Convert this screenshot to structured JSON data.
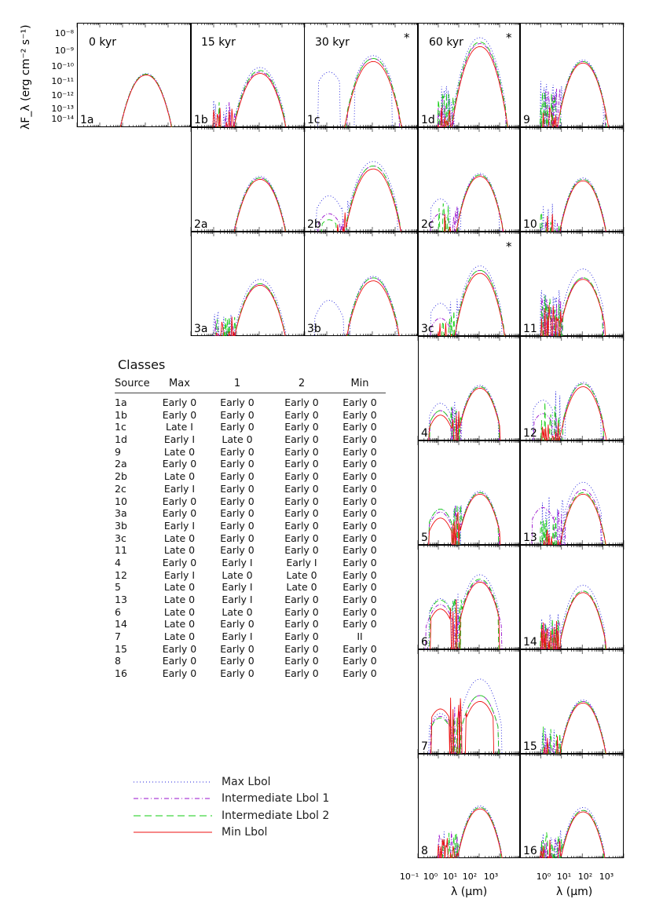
{
  "figure": {
    "y_axis_label": "λF_λ (erg cm⁻² s⁻¹)",
    "x_axis_label": "λ (μm)",
    "col_titles": [
      {
        "label": "0 kyr"
      },
      {
        "label": "15 kyr"
      },
      {
        "label": "30 kyr"
      },
      {
        "label": "60 kyr"
      }
    ],
    "y_ticks": [
      "10⁻⁸",
      "10⁻⁹",
      "10⁻¹⁰",
      "10⁻¹¹",
      "10⁻¹²",
      "10⁻¹³",
      "10⁻¹⁴"
    ],
    "x_ticks": [
      "10⁻¹",
      "10⁰",
      "10¹",
      "10²",
      "10³"
    ],
    "x_ticks_right": [
      "10⁰",
      "10¹",
      "10²",
      "10³"
    ]
  },
  "chart_data": {
    "type": "line",
    "xlabel": "λ (μm)",
    "ylabel": "λF_λ (erg cm⁻² s⁻¹)",
    "x_scale": "log",
    "y_scale": "log",
    "xlim": [
      0.1,
      10000
    ],
    "ylim": [
      1e-14,
      1e-07
    ],
    "series_styles": [
      {
        "name": "Max Lbol",
        "color": "#2222dd",
        "dash": "dotted"
      },
      {
        "name": "Intermediate Lbol 1",
        "color": "#9911cc",
        "dash": "dashdot"
      },
      {
        "name": "Intermediate Lbol 2",
        "color": "#11cc11",
        "dash": "dashed"
      },
      {
        "name": "Min Lbol",
        "color": "#ee1111",
        "dash": "solid"
      }
    ],
    "panels": [
      {
        "id": "1a",
        "star": false,
        "peak": [
          -10.4,
          -10.5,
          -10.45,
          -10.5
        ],
        "lo": [
          -14,
          -14,
          -14,
          -14
        ],
        "bump": [
          0,
          0,
          0,
          0
        ],
        "noise": 0,
        "src": "1a"
      },
      {
        "id": "1b",
        "star": false,
        "peak": [
          -10.0,
          -10.3,
          -10.2,
          -10.4
        ],
        "lo": [
          -13.5,
          -13.6,
          -13.6,
          -14
        ],
        "bump": [
          0,
          0,
          0,
          0
        ],
        "noise": 1
      },
      {
        "id": "2a",
        "star": false,
        "peak": [
          -10.3,
          -10.4,
          -10.4,
          -10.5
        ],
        "lo": [
          -14,
          -14,
          -14,
          -14
        ],
        "bump": [
          0,
          0,
          0,
          0
        ],
        "noise": 0
      },
      {
        "id": "3a",
        "star": false,
        "peak": [
          -10.2,
          -10.5,
          -10.5,
          -10.6
        ],
        "lo": [
          -13.8,
          -14,
          -13.8,
          -14
        ],
        "bump": [
          0,
          0,
          0,
          0
        ],
        "noise": 1
      },
      {
        "id": "1c",
        "star": true,
        "peak": [
          -9.2,
          -9.4,
          -9.4,
          -9.6
        ],
        "lo": [
          -11,
          -13,
          -13.2,
          -14
        ],
        "bump": [
          -10.3,
          0,
          0,
          0
        ],
        "noise": 0
      },
      {
        "id": "2b",
        "star": false,
        "peak": [
          -9.3,
          -9.6,
          -9.6,
          -9.8
        ],
        "lo": [
          -12.5,
          -13.5,
          -13.5,
          -14
        ],
        "bump": [
          -11.6,
          -12.8,
          -13.2,
          0
        ],
        "noise": 1
      },
      {
        "id": "3b",
        "star": false,
        "peak": [
          -10.0,
          -10.1,
          -10.1,
          -10.3
        ],
        "lo": [
          -12.8,
          -13.5,
          -13.5,
          -14
        ],
        "bump": [
          -11.6,
          -13.5,
          -13.5,
          0
        ],
        "noise": 0
      },
      {
        "id": "1d",
        "star": true,
        "peak": [
          -8.0,
          -8.4,
          -8.3,
          -8.6
        ],
        "lo": [
          -12.5,
          -13,
          -13,
          -14
        ],
        "bump": [
          0,
          0,
          0,
          0
        ],
        "noise": 2
      },
      {
        "id": "2c",
        "star": false,
        "peak": [
          -10.1,
          -10.2,
          -10.2,
          -10.3
        ],
        "lo": [
          -12.5,
          -13.5,
          -13.5,
          -14
        ],
        "bump": [
          -11.8,
          -12.8,
          0,
          0
        ],
        "noise": 1
      },
      {
        "id": "3c",
        "star": true,
        "peak": [
          -9.3,
          -9.6,
          -9.6,
          -9.8
        ],
        "lo": [
          -12.5,
          -13.5,
          -13.5,
          -14
        ],
        "bump": [
          -11.8,
          -12.8,
          0,
          0
        ],
        "noise": 1
      },
      {
        "id": "4",
        "star": false,
        "peak": [
          -10.3,
          -10.4,
          -10.4,
          -10.5
        ],
        "lo": [
          -12.5,
          -12.8,
          -12.8,
          -13.2
        ],
        "bump": [
          -11.5,
          -12.0,
          -12.0,
          -12.3
        ],
        "noise": 2
      },
      {
        "id": "5",
        "star": false,
        "peak": [
          -10.4,
          -10.5,
          -10.5,
          -10.6
        ],
        "lo": [
          -12.5,
          -12.8,
          -12.6,
          -13.2
        ],
        "bump": [
          -11.6,
          -11.8,
          -11.6,
          -12.2
        ],
        "noise": 2
      },
      {
        "id": "6",
        "star": false,
        "peak": [
          -9.0,
          -9.4,
          -9.3,
          -9.5
        ],
        "lo": [
          -11.5,
          -12.5,
          -11.5,
          -12.0
        ],
        "bump": [
          -10.6,
          -11.0,
          -10.7,
          -11.3
        ],
        "noise": 2
      },
      {
        "id": "7",
        "star": false,
        "peak": [
          -9.0,
          -10.1,
          -10.1,
          -10.5
        ],
        "lo": [
          -12.2,
          -12.2,
          -12.2,
          -11.6
        ],
        "bump": [
          -11.3,
          -11.5,
          -11.6,
          -11.0
        ],
        "noise": 1
      },
      {
        "id": "8",
        "star": false,
        "peak": [
          -10.5,
          -10.6,
          -10.6,
          -10.7
        ],
        "lo": [
          -13.5,
          -13.5,
          -13.5,
          -14
        ],
        "bump": [
          0,
          0,
          0,
          0
        ],
        "noise": 2
      },
      {
        "id": "9",
        "star": false,
        "peak": [
          -9.5,
          -9.6,
          -9.6,
          -9.7
        ],
        "lo": [
          -12.2,
          -12.8,
          -13.0,
          -14
        ],
        "bump": [
          0,
          0,
          0,
          0
        ],
        "noise": 2
      },
      {
        "id": "10",
        "star": false,
        "peak": [
          -10.4,
          -10.5,
          -10.5,
          -10.6
        ],
        "lo": [
          -13.5,
          -14,
          -14,
          -14
        ],
        "bump": [
          0,
          0,
          0,
          0
        ],
        "noise": 1
      },
      {
        "id": "11",
        "star": false,
        "peak": [
          -9.5,
          -10.1,
          -10.1,
          -10.2
        ],
        "lo": [
          -12.2,
          -12.8,
          -12.5,
          -13.2
        ],
        "bump": [
          0,
          0,
          0,
          0
        ],
        "noise": 2
      },
      {
        "id": "12",
        "star": false,
        "peak": [
          -10.1,
          -10.2,
          -10.2,
          -10.4
        ],
        "lo": [
          -12.0,
          -12.8,
          -12.8,
          -14
        ],
        "bump": [
          -11.3,
          -12.2,
          0,
          0
        ],
        "noise": 1
      },
      {
        "id": "13",
        "star": false,
        "peak": [
          -9.8,
          -10.3,
          -10.5,
          -10.6
        ],
        "lo": [
          -12.0,
          -12.3,
          -13.5,
          -14
        ],
        "bump": [
          0,
          -11.5,
          0,
          0
        ],
        "noise": 1
      },
      {
        "id": "14",
        "star": false,
        "peak": [
          -9.7,
          -10.1,
          -10.1,
          -10.2
        ],
        "lo": [
          -12.8,
          -13.3,
          -13.3,
          -13.5
        ],
        "bump": [
          0,
          0,
          0,
          0
        ],
        "noise": 2
      },
      {
        "id": "15",
        "star": false,
        "peak": [
          -10.4,
          -10.5,
          -10.5,
          -10.6
        ],
        "lo": [
          -13.5,
          -14,
          -13.5,
          -14
        ],
        "bump": [
          0,
          0,
          0,
          0
        ],
        "noise": 1
      },
      {
        "id": "16",
        "star": false,
        "peak": [
          -10.6,
          -10.8,
          -10.8,
          -10.9
        ],
        "lo": [
          -13.5,
          -14,
          -13.5,
          -14
        ],
        "bump": [
          0,
          0,
          0,
          0
        ],
        "noise": 2
      }
    ]
  },
  "classes": {
    "title": "Classes",
    "headers": [
      "Source",
      "Max",
      "1",
      "2",
      "Min"
    ],
    "rows": [
      [
        "1a",
        "Early 0",
        "Early 0",
        "Early 0",
        "Early 0"
      ],
      [
        "1b",
        "Early 0",
        "Early 0",
        "Early 0",
        "Early 0"
      ],
      [
        "1c",
        "Late I",
        "Early 0",
        "Early 0",
        "Early 0"
      ],
      [
        "1d",
        "Early I",
        "Late 0",
        "Early 0",
        "Early 0"
      ],
      [
        "9",
        "Late 0",
        "Early 0",
        "Early 0",
        "Early 0"
      ],
      [
        "2a",
        "Early 0",
        "Early 0",
        "Early 0",
        "Early 0"
      ],
      [
        "2b",
        "Late 0",
        "Early 0",
        "Early 0",
        "Early 0"
      ],
      [
        "2c",
        "Early I",
        "Early 0",
        "Early 0",
        "Early 0"
      ],
      [
        "10",
        "Early 0",
        "Early 0",
        "Early 0",
        "Early 0"
      ],
      [
        "3a",
        "Early 0",
        "Early 0",
        "Early 0",
        "Early 0"
      ],
      [
        "3b",
        "Early I",
        "Early 0",
        "Early 0",
        "Early 0"
      ],
      [
        "3c",
        "Late 0",
        "Early 0",
        "Early 0",
        "Early 0"
      ],
      [
        "11",
        "Late 0",
        "Early 0",
        "Early 0",
        "Early 0"
      ],
      [
        "4",
        "Early 0",
        "Early I",
        "Early I",
        "Early 0"
      ],
      [
        "12",
        "Early I",
        "Late 0",
        "Late 0",
        "Early 0"
      ],
      [
        "5",
        "Late 0",
        "Early I",
        "Late 0",
        "Early 0"
      ],
      [
        "13",
        "Late 0",
        "Early I",
        "Early 0",
        "Early 0"
      ],
      [
        "6",
        "Late 0",
        "Late 0",
        "Early 0",
        "Early 0"
      ],
      [
        "14",
        "Late 0",
        "Early 0",
        "Early 0",
        "Early 0"
      ],
      [
        "7",
        "Late 0",
        "Early I",
        "Early 0",
        "II"
      ],
      [
        "15",
        "Early 0",
        "Early 0",
        "Early 0",
        "Early 0"
      ],
      [
        "8",
        "Early 0",
        "Early 0",
        "Early 0",
        "Early 0"
      ],
      [
        "16",
        "Early 0",
        "Early 0",
        "Early 0",
        "Early 0"
      ]
    ]
  },
  "legend": {
    "items": [
      {
        "label": "Max Lbol"
      },
      {
        "label": "Intermediate Lbol 1"
      },
      {
        "label": "Intermediate Lbol 2"
      },
      {
        "label": "Min Lbol"
      }
    ]
  }
}
